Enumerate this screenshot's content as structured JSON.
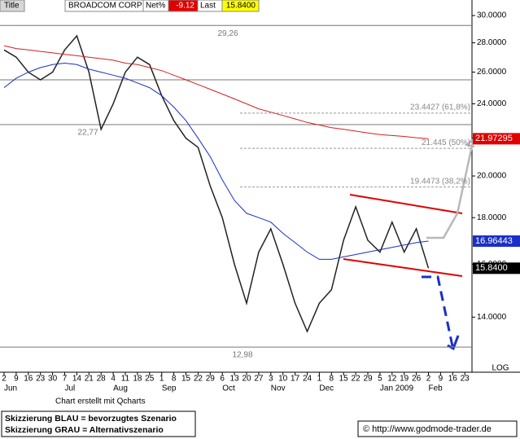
{
  "header": {
    "title": "Title",
    "name": "BROADCOM CORP",
    "net_label": "Net%",
    "net": "-9.12",
    "last_label": "Last",
    "last": "15.8400"
  },
  "chart_data": {
    "type": "line",
    "log": true,
    "categories": [
      "2",
      "9",
      "16",
      "23",
      "30",
      "7",
      "14",
      "21",
      "28",
      "4",
      "11",
      "18",
      "25",
      "1",
      "8",
      "15",
      "22",
      "29",
      "6",
      "13",
      "20",
      "27",
      "3",
      "10",
      "17",
      "24",
      "1",
      "8",
      "15",
      "22",
      "29",
      "5",
      "12",
      "19",
      "26",
      "2",
      "9",
      "16",
      "23"
    ],
    "month_labels": [
      "Jun",
      null,
      null,
      null,
      null,
      "Jul",
      null,
      null,
      null,
      "Aug",
      null,
      null,
      null,
      "Sep",
      null,
      null,
      null,
      null,
      "Oct",
      null,
      null,
      null,
      "Nov",
      null,
      null,
      null,
      "Dec",
      null,
      null,
      null,
      null,
      "Jan 2009",
      null,
      null,
      null,
      "Feb",
      null,
      null,
      null
    ],
    "series": [
      {
        "color": "#222222",
        "values": [
          27.5,
          27,
          26,
          25.5,
          26,
          27.5,
          28.5,
          26,
          22.5,
          24,
          26,
          27,
          26.5,
          24.5,
          23,
          22,
          21.5,
          19.5,
          18,
          16,
          14.5,
          16.5,
          17.5,
          16,
          14.5,
          13.5,
          14.5,
          15,
          17,
          18.5,
          17,
          16.5,
          17.8,
          16.5,
          17.5,
          15.84,
          null,
          null,
          null
        ]
      },
      {
        "color": "#1a2fc8",
        "values": [
          25,
          25.6,
          26,
          26.3,
          26.5,
          26.6,
          26.5,
          26.2,
          26,
          25.8,
          25.6,
          25.3,
          25,
          24.5,
          23.8,
          23,
          22,
          21,
          19.8,
          18.8,
          18.2,
          18,
          17.8,
          17.3,
          16.9,
          16.5,
          16.2,
          16.2,
          16.3,
          16.4,
          16.5,
          16.6,
          16.7,
          16.8,
          16.9,
          16.96443,
          null,
          null,
          null
        ]
      },
      {
        "color": "#d42020",
        "values": [
          27.8,
          27.6,
          27.5,
          27.4,
          27.3,
          27.2,
          27.1,
          27,
          26.9,
          26.8,
          26.6,
          26.5,
          26.3,
          26.1,
          25.8,
          25.5,
          25.2,
          24.9,
          24.6,
          24.3,
          24,
          23.7,
          23.5,
          23.3,
          23.1,
          22.9,
          22.75,
          22.6,
          22.5,
          22.4,
          22.3,
          22.2,
          22.15,
          22.1,
          22.03,
          21.97295,
          null,
          null,
          null
        ]
      }
    ],
    "ylim": [
      12.23,
      31.2
    ],
    "yticks": [
      {
        "value": 14,
        "label": "14.0000"
      },
      {
        "value": 16,
        "label": "16.0000"
      },
      {
        "value": 18,
        "label": "18.0000"
      },
      {
        "value": 20,
        "label": "20.0000"
      },
      {
        "value": 22,
        "label": "22.0000"
      },
      {
        "value": 24,
        "label": "24.0000"
      },
      {
        "value": 26,
        "label": "26.0000"
      },
      {
        "value": 28,
        "label": "28.0000"
      },
      {
        "value": 30,
        "label": "30.0000"
      }
    ],
    "levels": [
      {
        "value": 29.26,
        "label": "29,26",
        "style": "solid"
      },
      {
        "value": 25.5,
        "style": "solid"
      },
      {
        "value": 22.77,
        "label": "22,77",
        "style": "solid"
      },
      {
        "value": 12.98,
        "label": "12,98",
        "style": "solid"
      },
      {
        "value": 23.4427,
        "label": "23.4427 (61,8%)",
        "style": "dashed"
      },
      {
        "value": 21.445,
        "label": "21.445 (50%)",
        "style": "dashed"
      },
      {
        "value": 19.4473,
        "label": "19.4473 (38,2%)",
        "style": "dashed"
      }
    ],
    "price_tags": [
      {
        "value": 21.97295,
        "color": "#e00000"
      },
      {
        "value": 16.96443,
        "color": "#1a2fc8"
      },
      {
        "value": 15.84,
        "label": "15.8400",
        "color": "#000000"
      }
    ],
    "scale_label": "LOG"
  },
  "footer": {
    "credit": "Chart erstellt mit Qcharts",
    "legend_blue": "Skizzierung BLAU = bevorzugtes Szenario",
    "legend_gray": "Skizzierung GRAU = Alternativszenario",
    "source": "© http://www.godmode-trader.de"
  }
}
